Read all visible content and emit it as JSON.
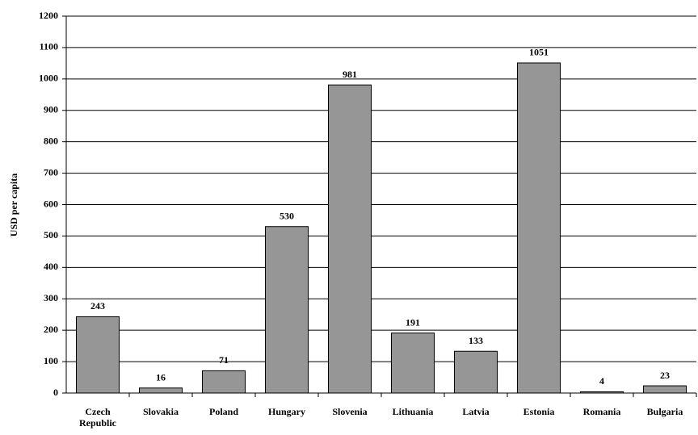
{
  "chart_data": {
    "type": "bar",
    "y_label": "USD per capita",
    "categories": [
      "Czech Republic",
      "Slovakia",
      "Poland",
      "Hungary",
      "Slovenia",
      "Lithuania",
      "Latvia",
      "Estonia",
      "Romania",
      "Bulgaria"
    ],
    "values": [
      243,
      16,
      71,
      530,
      981,
      191,
      133,
      1051,
      4,
      23
    ],
    "color": "#969696",
    "ylim": [
      0,
      1200
    ],
    "yticks": [
      0,
      100,
      200,
      300,
      400,
      500,
      600,
      700,
      800,
      900,
      1000,
      1100,
      1200
    ],
    "grid": true
  }
}
